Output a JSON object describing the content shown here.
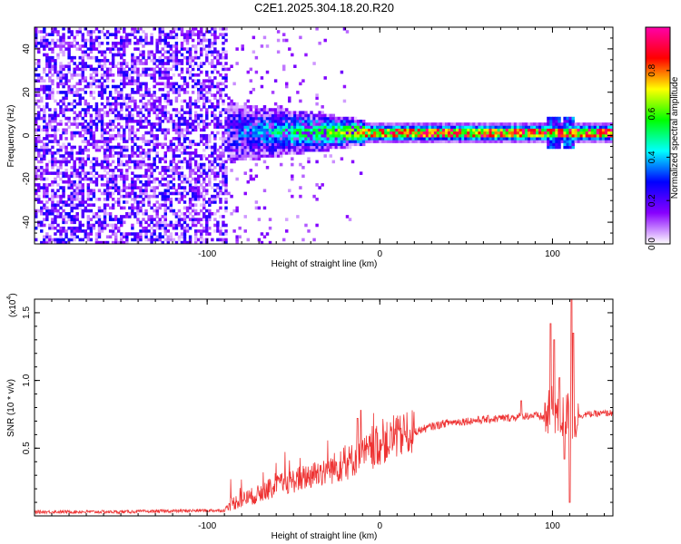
{
  "title": "C2E1.2025.304.18.20.R20",
  "chart_data": [
    {
      "type": "heatmap",
      "name": "spectrogram",
      "xlabel": "Height of straight line (km)",
      "ylabel": "Frequency (Hz)",
      "xlim": [
        -200,
        135
      ],
      "ylim": [
        -50,
        50
      ],
      "xticks": [
        -100,
        0,
        100
      ],
      "xtick_labels": [
        "-100",
        "0",
        "100"
      ],
      "yticks": [
        -40,
        -20,
        0,
        20,
        40
      ],
      "ytick_labels": [
        "-40",
        "-20",
        "0",
        "20",
        "40"
      ],
      "noise_region_x": [
        -200,
        -88
      ],
      "transition_region_x": [
        -88,
        -8
      ],
      "stable_signal_x": [
        -8,
        135
      ],
      "signal_frequency_hz": 1.5,
      "colorbar": {
        "label": "Normalized spectral amplitude",
        "range": [
          0,
          1
        ],
        "ticks": [
          0,
          0.2,
          0.4,
          0.6,
          0.8
        ],
        "tick_labels": [
          "0.0",
          "0.2",
          "0.4",
          "0.6",
          "0.8"
        ],
        "colormap": [
          "#ffffff",
          "#8800ff",
          "#0000ff",
          "#00ffff",
          "#00ff00",
          "#ffff00",
          "#ff0000",
          "#ff00aa"
        ]
      }
    },
    {
      "type": "line",
      "name": "snr",
      "xlabel": "Height of straight line (km)",
      "ylabel": "SNR (10 * v/v)",
      "multiplier_label": "(x10",
      "multiplier_exponent": "4",
      "multiplier_close": ")",
      "xlim": [
        -200,
        135
      ],
      "ylim": [
        0,
        1.6
      ],
      "xticks": [
        -100,
        0,
        100
      ],
      "xtick_labels": [
        "-100",
        "0",
        "100"
      ],
      "yticks": [
        0.5,
        1.0,
        1.5
      ],
      "ytick_labels": [
        "0.5",
        "1.0",
        "1.5"
      ],
      "color": "#ee3333",
      "series": [
        {
          "name": "SNR",
          "x": [
            -200,
            -150,
            -100,
            -90,
            -88,
            -80,
            -70,
            -60,
            -50,
            -40,
            -30,
            -20,
            -15,
            -10,
            -5,
            0,
            10,
            20,
            30,
            40,
            50,
            60,
            70,
            80,
            85,
            90,
            95,
            98,
            100,
            105,
            110,
            112,
            115,
            120,
            135
          ],
          "y": [
            0.03,
            0.03,
            0.04,
            0.04,
            0.08,
            0.12,
            0.16,
            0.22,
            0.26,
            0.3,
            0.34,
            0.38,
            0.42,
            0.45,
            0.48,
            0.52,
            0.58,
            0.62,
            0.66,
            0.69,
            0.7,
            0.71,
            0.72,
            0.73,
            0.74,
            0.74,
            0.73,
            0.75,
            0.8,
            0.72,
            0.75,
            0.7,
            0.74,
            0.75,
            0.76
          ]
        }
      ],
      "spikes": [
        {
          "x": -11,
          "y": 0.78
        },
        {
          "x": -13,
          "y": 0.72
        },
        {
          "x": 82,
          "y": 0.85
        },
        {
          "x": 99,
          "y": 1.42
        },
        {
          "x": 101,
          "y": 1.3
        },
        {
          "x": 104,
          "y": 1.02
        },
        {
          "x": 107,
          "y": 0.42
        },
        {
          "x": 111,
          "y": 1.62
        },
        {
          "x": 112,
          "y": 1.35
        },
        {
          "x": 110,
          "y": 0.1
        }
      ]
    }
  ]
}
